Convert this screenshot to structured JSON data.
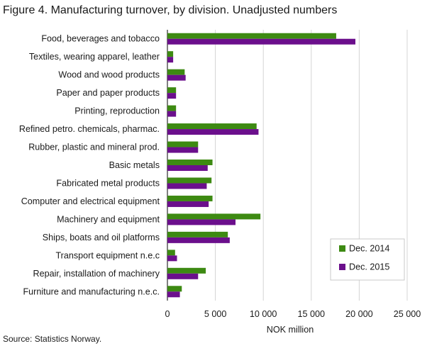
{
  "chart_data": {
    "type": "bar",
    "orientation": "horizontal",
    "title": "Figure 4. Manufacturing turnover, by division. Unadjusted numbers",
    "source": "Source: Statistics Norway.",
    "xlabel": "NOK million",
    "ylabel": "",
    "xlim": [
      0,
      25000
    ],
    "xticks": [
      0,
      5000,
      10000,
      15000,
      20000,
      25000
    ],
    "xtick_labels": [
      "0",
      "5 000",
      "10 000",
      "15 000",
      "20 000",
      "25 000"
    ],
    "grid": "vertical",
    "legend_position": "bottom-right",
    "categories": [
      "Food, beverages and tobacco",
      "Textiles, wearing apparel, leather",
      "Wood and wood products",
      "Paper and paper products",
      "Printing, reproduction",
      "Refined petro. chemicals, pharmac.",
      "Rubber, plastic and mineral prod.",
      "Basic metals",
      "Fabricated metal products",
      "Computer and electrical equipment",
      "Machinery and equipment",
      "Ships, boats and oil platforms",
      "Transport equipment n.e.c",
      "Repair, installation of machinery",
      "Furniture and manufacturing n.e.c."
    ],
    "series": [
      {
        "name": "Dec. 2014",
        "color": "#3d8a12",
        "values": [
          17600,
          600,
          1800,
          900,
          900,
          9300,
          3200,
          4700,
          4600,
          4700,
          9700,
          6300,
          800,
          4000,
          1500
        ]
      },
      {
        "name": "Dec. 2015",
        "color": "#6b0f8c",
        "values": [
          19600,
          600,
          1900,
          900,
          900,
          9500,
          3200,
          4200,
          4100,
          4300,
          7100,
          6500,
          1000,
          3200,
          1300
        ]
      }
    ]
  }
}
